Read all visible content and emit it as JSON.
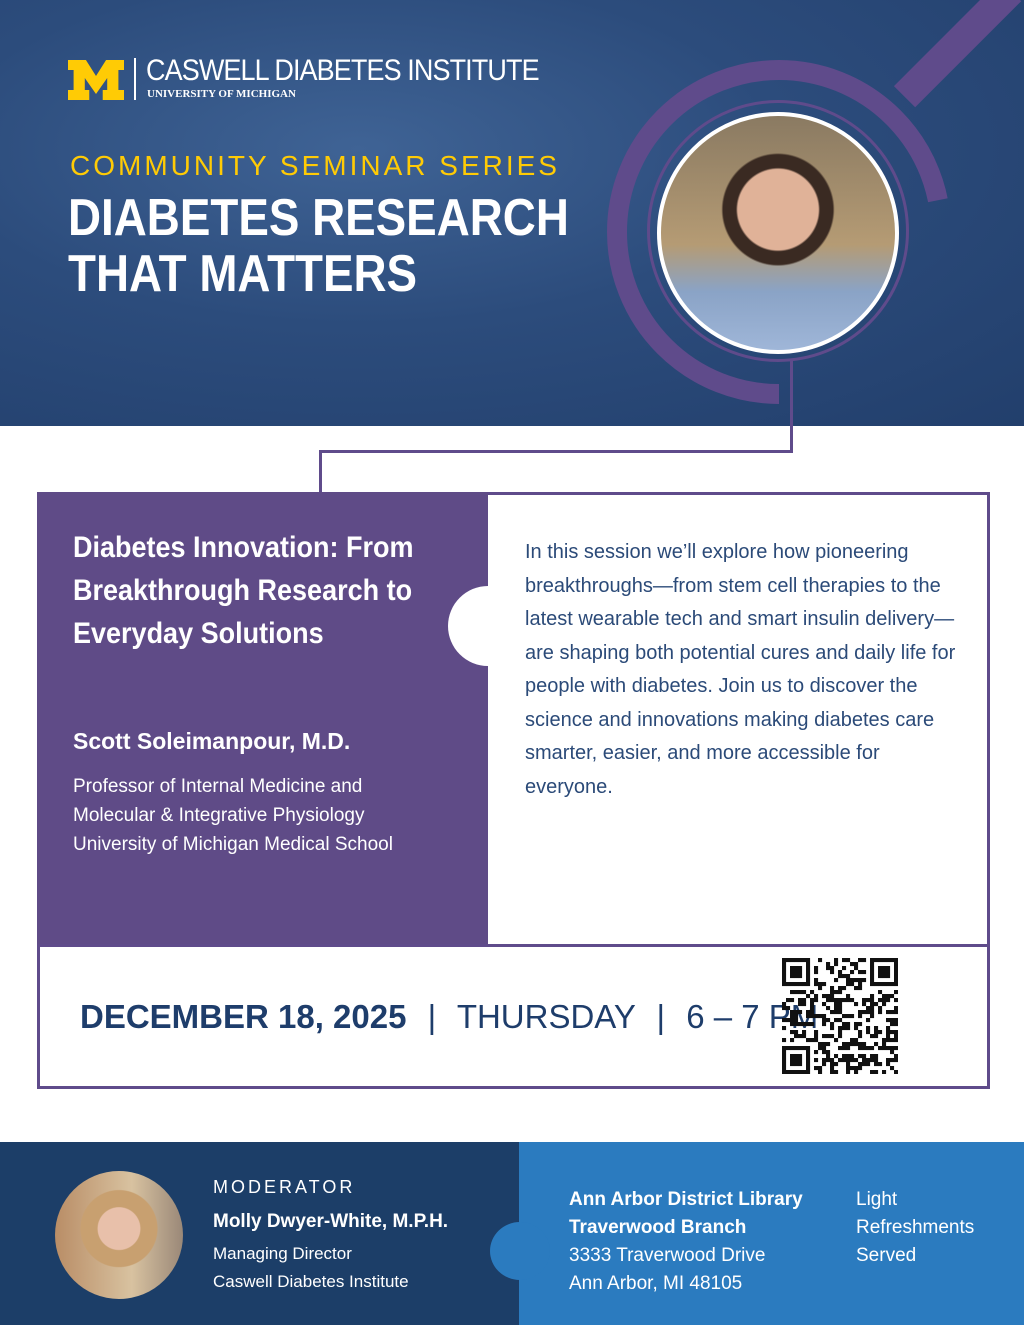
{
  "header": {
    "institute": "CASWELL DIABETES INSTITUTE",
    "university": "UNIVERSITY OF MICHIGAN",
    "series": "COMMUNITY SEMINAR SERIES",
    "title_line1": "DIABETES RESEARCH",
    "title_line2": "THAT MATTERS"
  },
  "talk": {
    "title": "Diabetes Innovation: From Breakthrough Research to Everyday Solutions",
    "speaker": "Scott Soleimanpour, M.D.",
    "affiliation": [
      "Professor of Internal Medicine and",
      "Molecular & Integrative Physiology",
      "University of Michigan Medical School"
    ],
    "description": "In this session we’ll explore how pioneering breakthroughs—from stem cell therapies to the latest wearable tech and smart insulin delivery—are shaping both potential cures and daily life for people with diabetes. Join us to discover the science and innovations making diabetes care smarter, easier, and more accessible for everyone."
  },
  "event": {
    "date": "DECEMBER 18, 2025",
    "sep": "|",
    "day": "THURSDAY",
    "time": "6 – 7 PM"
  },
  "moderator": {
    "label": "MODERATOR",
    "name": "Molly Dwyer-White, M.P.H.",
    "role": "Managing Director",
    "org": "Caswell Diabetes Institute"
  },
  "venue": {
    "name": "Ann Arbor District Library",
    "branch": "Traverwood Branch",
    "street": "3333 Traverwood Drive",
    "city": "Ann Arbor, MI 48105"
  },
  "refreshments": [
    "Light",
    "Refreshments",
    "Served"
  ],
  "colors": {
    "navy": "#1c3e68",
    "purple": "#5f4b87",
    "maize": "#ffcb05",
    "blue": "#2b7bbf"
  }
}
